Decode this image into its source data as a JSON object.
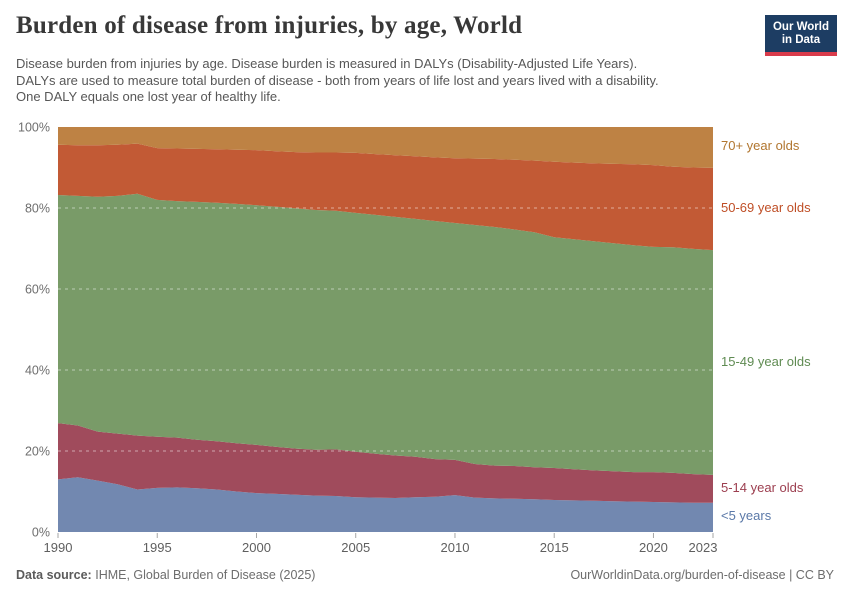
{
  "header": {
    "title": "Burden of disease from injuries, by age, World",
    "subtitle_lines": [
      "Disease burden from injuries by age. Disease burden is measured in DALYs (Disability-Adjusted Life Years).",
      "DALYs are used to measure total burden of disease - both from years of life lost and years lived with a disability.",
      "One DALY equals one lost year of healthy life."
    ],
    "logo": {
      "line1": "Our World",
      "line2": "in Data",
      "bg_color": "#1D3D63",
      "stripe_color": "#D93B4B"
    }
  },
  "chart_data": {
    "type": "area",
    "stacked": true,
    "percent_mode": true,
    "title": "Burden of disease from injuries, by age, World",
    "xlabel": "",
    "ylabel": "",
    "xlim": [
      1990,
      2023
    ],
    "ylim": [
      0,
      100
    ],
    "grid": "dashed-white-over-areas",
    "legend_position": "right-of-plot",
    "x": [
      1990,
      1991,
      1992,
      1993,
      1994,
      1995,
      1996,
      1997,
      1998,
      1999,
      2000,
      2001,
      2002,
      2003,
      2004,
      2005,
      2006,
      2007,
      2008,
      2009,
      2010,
      2011,
      2012,
      2013,
      2014,
      2015,
      2016,
      2017,
      2018,
      2019,
      2020,
      2021,
      2022,
      2023
    ],
    "x_ticks": [
      1990,
      1995,
      2000,
      2005,
      2010,
      2015,
      2020,
      2023
    ],
    "y_ticks": [
      0,
      20,
      40,
      60,
      80,
      100
    ],
    "y_tick_suffix": "%",
    "series": [
      {
        "key": "under-5",
        "label": "<5 years",
        "color": "#7288B0",
        "label_color": "#5B79A8",
        "values": [
          13.0,
          13.5,
          12.7,
          11.8,
          10.5,
          10.9,
          11.0,
          10.8,
          10.5,
          10.0,
          9.6,
          9.4,
          9.2,
          9.0,
          8.9,
          8.6,
          8.5,
          8.4,
          8.6,
          8.7,
          9.1,
          8.5,
          8.3,
          8.2,
          8.1,
          7.9,
          7.8,
          7.7,
          7.6,
          7.5,
          7.4,
          7.3,
          7.2,
          7.2
        ]
      },
      {
        "key": "5-14",
        "label": "5-14 year olds",
        "color": "#A04B5C",
        "label_color": "#9C3E4F",
        "values": [
          13.9,
          12.8,
          12.1,
          12.5,
          13.3,
          12.6,
          12.3,
          12.0,
          11.9,
          11.9,
          11.9,
          11.6,
          11.4,
          11.3,
          11.5,
          11.2,
          10.8,
          10.5,
          10.0,
          9.3,
          8.7,
          8.3,
          8.1,
          8.1,
          7.9,
          7.9,
          7.7,
          7.5,
          7.4,
          7.3,
          7.4,
          7.3,
          7.1,
          6.9
        ]
      },
      {
        "key": "15-49",
        "label": "15-49 year olds",
        "color": "#799B68",
        "label_color": "#5F8B52",
        "values": [
          56.3,
          56.7,
          58.0,
          58.7,
          59.7,
          58.5,
          58.4,
          58.7,
          58.9,
          59.1,
          59.2,
          59.3,
          59.3,
          59.2,
          58.9,
          59.0,
          59.0,
          58.9,
          58.7,
          58.8,
          58.5,
          59.0,
          58.9,
          58.4,
          58.0,
          57.0,
          56.8,
          56.6,
          56.3,
          56.0,
          55.6,
          55.7,
          55.6,
          55.5
        ]
      },
      {
        "key": "50-69",
        "label": "50-69 year olds",
        "color": "#C25A35",
        "label_color": "#BF4E26",
        "values": [
          12.4,
          12.5,
          12.7,
          12.6,
          12.4,
          12.8,
          13.0,
          13.1,
          13.2,
          13.4,
          13.6,
          13.7,
          13.9,
          14.2,
          14.4,
          14.8,
          15.0,
          15.2,
          15.5,
          15.7,
          16.0,
          16.4,
          16.8,
          17.2,
          17.7,
          18.6,
          18.9,
          19.2,
          19.6,
          20.0,
          20.2,
          19.9,
          20.1,
          20.3
        ]
      },
      {
        "key": "70-plus",
        "label": "70+ year olds",
        "color": "#BE8244",
        "label_color": "#B1762F",
        "values": [
          4.4,
          4.5,
          4.5,
          4.4,
          4.1,
          5.2,
          5.3,
          5.4,
          5.5,
          5.6,
          5.7,
          6.0,
          6.2,
          6.3,
          6.3,
          6.4,
          6.7,
          7.0,
          7.2,
          7.5,
          7.7,
          7.8,
          7.9,
          8.1,
          8.3,
          8.6,
          8.8,
          9.0,
          9.1,
          9.2,
          9.4,
          9.8,
          10.0,
          10.1
        ]
      }
    ]
  },
  "footer": {
    "source_label": "Data source:",
    "source_text": "IHME, Global Burden of Disease (2025)",
    "credit": "OurWorldinData.org/burden-of-disease | CC BY"
  }
}
